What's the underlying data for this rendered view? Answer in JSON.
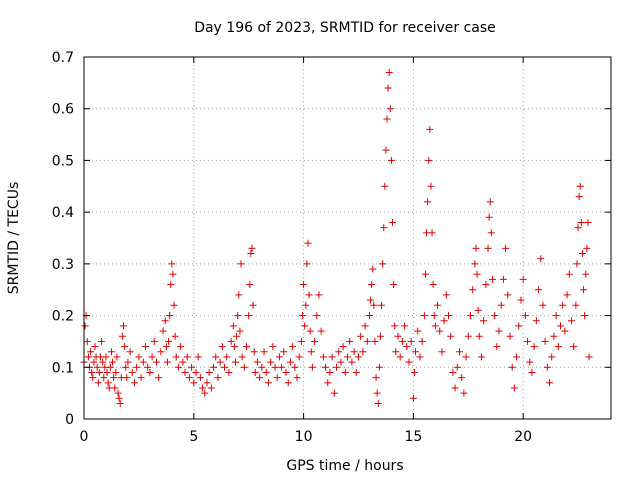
{
  "chart_data": {
    "type": "scatter",
    "title": "Day 196 of 2023, SRMTID for receiver case",
    "xlabel": "GPS time / hours",
    "ylabel": "SRMTID / TECUs",
    "xlim": [
      0,
      24
    ],
    "ylim": [
      0,
      0.7
    ],
    "grid": true,
    "marker": "+",
    "color": "#e00000",
    "xticks": [
      0,
      5,
      10,
      15,
      20
    ],
    "xtick_labels": [
      "0",
      "5",
      "10",
      "15",
      "20"
    ],
    "yticks": [
      0,
      0.1,
      0.2,
      0.3,
      0.4,
      0.5,
      0.6,
      0.7
    ],
    "ytick_labels": [
      "0",
      "0.1",
      "0.2",
      "0.3",
      "0.4",
      "0.5",
      "0.6",
      "0.7"
    ],
    "series": [
      {
        "name": "SRMTID",
        "points": [
          [
            0.0,
            0.11
          ],
          [
            0.05,
            0.18
          ],
          [
            0.1,
            0.2
          ],
          [
            0.15,
            0.15
          ],
          [
            0.2,
            0.12
          ],
          [
            0.25,
            0.1
          ],
          [
            0.3,
            0.13
          ],
          [
            0.35,
            0.09
          ],
          [
            0.4,
            0.08
          ],
          [
            0.45,
            0.11
          ],
          [
            0.5,
            0.14
          ],
          [
            0.55,
            0.12
          ],
          [
            0.6,
            0.1
          ],
          [
            0.65,
            0.07
          ],
          [
            0.7,
            0.09
          ],
          [
            0.75,
            0.12
          ],
          [
            0.8,
            0.15
          ],
          [
            0.85,
            0.11
          ],
          [
            0.9,
            0.08
          ],
          [
            0.95,
            0.1
          ],
          [
            1.0,
            0.12
          ],
          [
            1.05,
            0.09
          ],
          [
            1.1,
            0.07
          ],
          [
            1.15,
            0.06
          ],
          [
            1.2,
            0.1
          ],
          [
            1.25,
            0.13
          ],
          [
            1.3,
            0.11
          ],
          [
            1.35,
            0.08
          ],
          [
            1.4,
            0.06
          ],
          [
            1.45,
            0.09
          ],
          [
            1.5,
            0.12
          ],
          [
            1.55,
            0.05
          ],
          [
            1.6,
            0.04
          ],
          [
            1.65,
            0.03
          ],
          [
            1.7,
            0.08
          ],
          [
            1.75,
            0.16
          ],
          [
            1.8,
            0.18
          ],
          [
            1.85,
            0.14
          ],
          [
            1.9,
            0.1
          ],
          [
            1.95,
            0.08
          ],
          [
            2.0,
            0.11
          ],
          [
            2.1,
            0.13
          ],
          [
            2.2,
            0.09
          ],
          [
            2.3,
            0.07
          ],
          [
            2.4,
            0.1
          ],
          [
            2.5,
            0.12
          ],
          [
            2.6,
            0.08
          ],
          [
            2.7,
            0.11
          ],
          [
            2.8,
            0.14
          ],
          [
            2.9,
            0.1
          ],
          [
            3.0,
            0.09
          ],
          [
            3.1,
            0.12
          ],
          [
            3.2,
            0.15
          ],
          [
            3.3,
            0.11
          ],
          [
            3.4,
            0.08
          ],
          [
            3.5,
            0.13
          ],
          [
            3.6,
            0.17
          ],
          [
            3.7,
            0.19
          ],
          [
            3.75,
            0.14
          ],
          [
            3.8,
            0.11
          ],
          [
            3.85,
            0.15
          ],
          [
            3.9,
            0.2
          ],
          [
            3.95,
            0.26
          ],
          [
            4.0,
            0.3
          ],
          [
            4.05,
            0.28
          ],
          [
            4.1,
            0.22
          ],
          [
            4.15,
            0.16
          ],
          [
            4.2,
            0.12
          ],
          [
            4.3,
            0.1
          ],
          [
            4.4,
            0.14
          ],
          [
            4.5,
            0.11
          ],
          [
            4.6,
            0.09
          ],
          [
            4.7,
            0.12
          ],
          [
            4.8,
            0.08
          ],
          [
            4.9,
            0.1
          ],
          [
            5.0,
            0.07
          ],
          [
            5.1,
            0.09
          ],
          [
            5.2,
            0.12
          ],
          [
            5.3,
            0.08
          ],
          [
            5.4,
            0.06
          ],
          [
            5.5,
            0.05
          ],
          [
            5.6,
            0.07
          ],
          [
            5.7,
            0.09
          ],
          [
            5.8,
            0.06
          ],
          [
            5.9,
            0.1
          ],
          [
            6.0,
            0.12
          ],
          [
            6.1,
            0.08
          ],
          [
            6.2,
            0.11
          ],
          [
            6.3,
            0.14
          ],
          [
            6.4,
            0.1
          ],
          [
            6.5,
            0.12
          ],
          [
            6.6,
            0.09
          ],
          [
            6.7,
            0.15
          ],
          [
            6.8,
            0.18
          ],
          [
            6.85,
            0.14
          ],
          [
            6.9,
            0.11
          ],
          [
            6.95,
            0.16
          ],
          [
            7.0,
            0.2
          ],
          [
            7.05,
            0.24
          ],
          [
            7.1,
            0.17
          ],
          [
            7.15,
            0.3
          ],
          [
            7.2,
            0.12
          ],
          [
            7.3,
            0.1
          ],
          [
            7.4,
            0.14
          ],
          [
            7.5,
            0.2
          ],
          [
            7.55,
            0.26
          ],
          [
            7.6,
            0.32
          ],
          [
            7.65,
            0.33
          ],
          [
            7.7,
            0.22
          ],
          [
            7.75,
            0.13
          ],
          [
            7.8,
            0.09
          ],
          [
            7.9,
            0.11
          ],
          [
            8.0,
            0.08
          ],
          [
            8.1,
            0.1
          ],
          [
            8.2,
            0.13
          ],
          [
            8.3,
            0.09
          ],
          [
            8.4,
            0.07
          ],
          [
            8.5,
            0.11
          ],
          [
            8.6,
            0.14
          ],
          [
            8.7,
            0.1
          ],
          [
            8.8,
            0.08
          ],
          [
            8.9,
            0.12
          ],
          [
            9.0,
            0.1
          ],
          [
            9.1,
            0.13
          ],
          [
            9.2,
            0.09
          ],
          [
            9.3,
            0.07
          ],
          [
            9.4,
            0.11
          ],
          [
            9.5,
            0.14
          ],
          [
            9.6,
            0.1
          ],
          [
            9.7,
            0.08
          ],
          [
            9.8,
            0.12
          ],
          [
            9.9,
            0.15
          ],
          [
            9.95,
            0.2
          ],
          [
            10.0,
            0.26
          ],
          [
            10.05,
            0.18
          ],
          [
            10.1,
            0.22
          ],
          [
            10.15,
            0.3
          ],
          [
            10.2,
            0.34
          ],
          [
            10.25,
            0.24
          ],
          [
            10.3,
            0.17
          ],
          [
            10.35,
            0.13
          ],
          [
            10.4,
            0.1
          ],
          [
            10.5,
            0.15
          ],
          [
            10.6,
            0.2
          ],
          [
            10.7,
            0.24
          ],
          [
            10.8,
            0.17
          ],
          [
            10.9,
            0.12
          ],
          [
            11.0,
            0.1
          ],
          [
            11.1,
            0.07
          ],
          [
            11.2,
            0.09
          ],
          [
            11.3,
            0.12
          ],
          [
            11.4,
            0.05
          ],
          [
            11.5,
            0.1
          ],
          [
            11.6,
            0.13
          ],
          [
            11.7,
            0.11
          ],
          [
            11.8,
            0.14
          ],
          [
            11.9,
            0.09
          ],
          [
            12.0,
            0.12
          ],
          [
            12.1,
            0.15
          ],
          [
            12.2,
            0.11
          ],
          [
            12.3,
            0.13
          ],
          [
            12.4,
            0.09
          ],
          [
            12.5,
            0.12
          ],
          [
            12.6,
            0.16
          ],
          [
            12.7,
            0.13
          ],
          [
            12.8,
            0.18
          ],
          [
            12.9,
            0.15
          ],
          [
            13.0,
            0.2
          ],
          [
            13.05,
            0.23
          ],
          [
            13.1,
            0.26
          ],
          [
            13.15,
            0.29
          ],
          [
            13.2,
            0.22
          ],
          [
            13.25,
            0.15
          ],
          [
            13.3,
            0.08
          ],
          [
            13.35,
            0.05
          ],
          [
            13.4,
            0.03
          ],
          [
            13.45,
            0.1
          ],
          [
            13.5,
            0.16
          ],
          [
            13.55,
            0.22
          ],
          [
            13.6,
            0.3
          ],
          [
            13.65,
            0.37
          ],
          [
            13.7,
            0.45
          ],
          [
            13.75,
            0.52
          ],
          [
            13.8,
            0.58
          ],
          [
            13.85,
            0.64
          ],
          [
            13.9,
            0.67
          ],
          [
            13.95,
            0.6
          ],
          [
            14.0,
            0.5
          ],
          [
            14.05,
            0.38
          ],
          [
            14.1,
            0.26
          ],
          [
            14.15,
            0.18
          ],
          [
            14.2,
            0.13
          ],
          [
            14.3,
            0.16
          ],
          [
            14.4,
            0.12
          ],
          [
            14.5,
            0.15
          ],
          [
            14.6,
            0.18
          ],
          [
            14.7,
            0.14
          ],
          [
            14.8,
            0.11
          ],
          [
            14.9,
            0.15
          ],
          [
            15.0,
            0.04
          ],
          [
            15.05,
            0.09
          ],
          [
            15.1,
            0.13
          ],
          [
            15.2,
            0.17
          ],
          [
            15.3,
            0.12
          ],
          [
            15.4,
            0.15
          ],
          [
            15.5,
            0.2
          ],
          [
            15.55,
            0.28
          ],
          [
            15.6,
            0.36
          ],
          [
            15.65,
            0.42
          ],
          [
            15.7,
            0.5
          ],
          [
            15.75,
            0.56
          ],
          [
            15.8,
            0.45
          ],
          [
            15.85,
            0.36
          ],
          [
            15.9,
            0.26
          ],
          [
            15.95,
            0.2
          ],
          [
            16.0,
            0.18
          ],
          [
            16.1,
            0.22
          ],
          [
            16.2,
            0.17
          ],
          [
            16.3,
            0.13
          ],
          [
            16.4,
            0.19
          ],
          [
            16.5,
            0.24
          ],
          [
            16.6,
            0.2
          ],
          [
            16.7,
            0.16
          ],
          [
            16.8,
            0.09
          ],
          [
            16.9,
            0.06
          ],
          [
            17.0,
            0.1
          ],
          [
            17.1,
            0.13
          ],
          [
            17.2,
            0.08
          ],
          [
            17.3,
            0.05
          ],
          [
            17.4,
            0.12
          ],
          [
            17.5,
            0.16
          ],
          [
            17.6,
            0.2
          ],
          [
            17.7,
            0.25
          ],
          [
            17.8,
            0.3
          ],
          [
            17.85,
            0.33
          ],
          [
            17.9,
            0.28
          ],
          [
            17.95,
            0.21
          ],
          [
            18.0,
            0.16
          ],
          [
            18.1,
            0.12
          ],
          [
            18.2,
            0.19
          ],
          [
            18.3,
            0.26
          ],
          [
            18.4,
            0.33
          ],
          [
            18.45,
            0.39
          ],
          [
            18.5,
            0.42
          ],
          [
            18.55,
            0.36
          ],
          [
            18.6,
            0.27
          ],
          [
            18.7,
            0.2
          ],
          [
            18.8,
            0.14
          ],
          [
            18.9,
            0.17
          ],
          [
            19.0,
            0.22
          ],
          [
            19.1,
            0.27
          ],
          [
            19.2,
            0.33
          ],
          [
            19.3,
            0.24
          ],
          [
            19.4,
            0.16
          ],
          [
            19.5,
            0.1
          ],
          [
            19.6,
            0.06
          ],
          [
            19.7,
            0.12
          ],
          [
            19.8,
            0.18
          ],
          [
            19.9,
            0.23
          ],
          [
            20.0,
            0.27
          ],
          [
            20.1,
            0.2
          ],
          [
            20.2,
            0.15
          ],
          [
            20.3,
            0.11
          ],
          [
            20.4,
            0.09
          ],
          [
            20.5,
            0.14
          ],
          [
            20.6,
            0.19
          ],
          [
            20.7,
            0.25
          ],
          [
            20.8,
            0.31
          ],
          [
            20.9,
            0.22
          ],
          [
            21.0,
            0.15
          ],
          [
            21.1,
            0.1
          ],
          [
            21.2,
            0.07
          ],
          [
            21.3,
            0.12
          ],
          [
            21.4,
            0.16
          ],
          [
            21.5,
            0.2
          ],
          [
            21.6,
            0.14
          ],
          [
            21.7,
            0.18
          ],
          [
            21.8,
            0.22
          ],
          [
            21.9,
            0.17
          ],
          [
            22.0,
            0.24
          ],
          [
            22.1,
            0.28
          ],
          [
            22.2,
            0.19
          ],
          [
            22.3,
            0.14
          ],
          [
            22.4,
            0.22
          ],
          [
            22.45,
            0.3
          ],
          [
            22.5,
            0.37
          ],
          [
            22.55,
            0.43
          ],
          [
            22.6,
            0.45
          ],
          [
            22.65,
            0.38
          ],
          [
            22.7,
            0.32
          ],
          [
            22.75,
            0.25
          ],
          [
            22.8,
            0.2
          ],
          [
            22.85,
            0.28
          ],
          [
            22.9,
            0.33
          ],
          [
            22.95,
            0.38
          ],
          [
            23.0,
            0.12
          ]
        ]
      }
    ]
  }
}
